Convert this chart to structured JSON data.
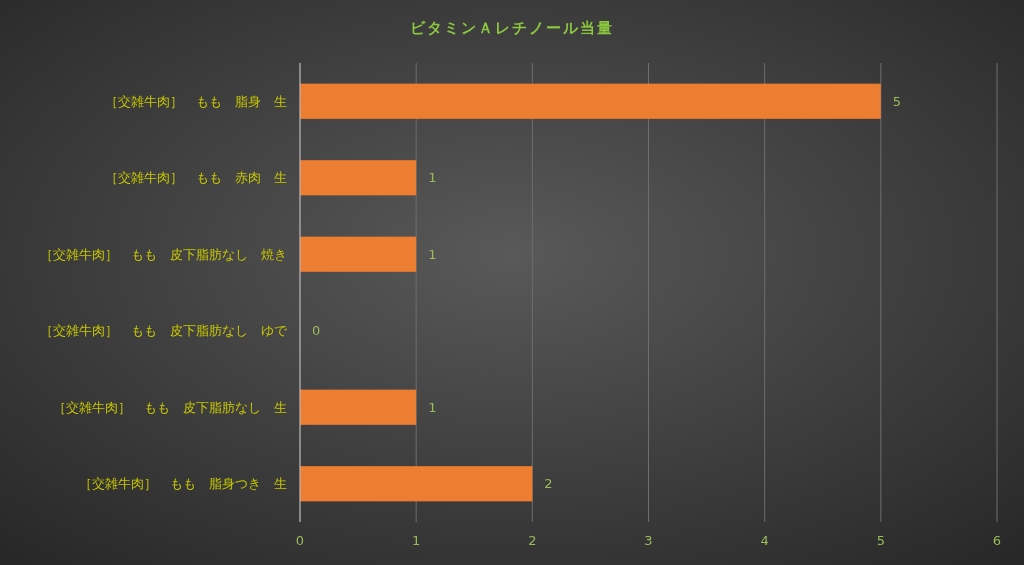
{
  "chart_data": {
    "type": "bar",
    "orientation": "horizontal",
    "title": "ビタミンＡレチノール当量",
    "categories": [
      "［交雑牛肉］　もも　脂身　生",
      "［交雑牛肉］　もも　赤肉　生",
      "［交雑牛肉］　もも　皮下脂肪なし　焼き",
      "［交雑牛肉］　もも　皮下脂肪なし　ゆで",
      "［交雑牛肉］　もも　皮下脂肪なし　生",
      "［交雑牛肉］　もも　脂身つき　生"
    ],
    "values": [
      5,
      1,
      1,
      0,
      1,
      2
    ],
    "color": "#ed7d31",
    "xlim": [
      0,
      6
    ],
    "xticks": [
      0,
      1,
      2,
      3,
      4,
      5,
      6
    ],
    "grid": "x",
    "data_labels": true
  }
}
